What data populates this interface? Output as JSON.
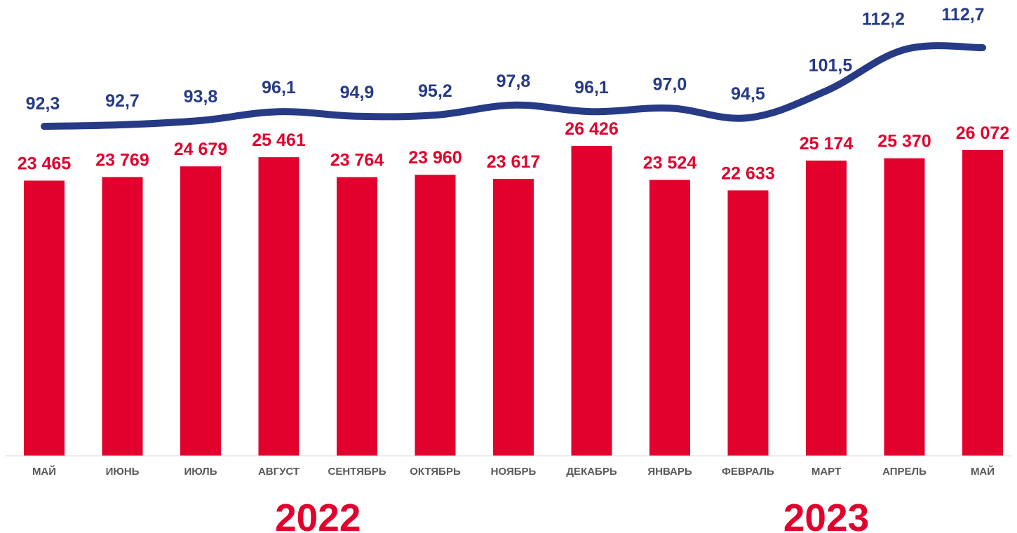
{
  "chart_data": {
    "type": "bar",
    "categories": [
      "МАЙ",
      "ИЮНЬ",
      "ИЮЛЬ",
      "АВГУСТ",
      "СЕНТЯБРЬ",
      "ОКТЯБРЬ",
      "НОЯБРЬ",
      "ДЕКАБРЬ",
      "ЯНВАРЬ",
      "ФЕВРАЛЬ",
      "МАРТ",
      "АПРЕЛЬ",
      "МАЙ"
    ],
    "series": [
      {
        "type": "bar",
        "values": [
          23465,
          23769,
          24679,
          25461,
          23764,
          23960,
          23617,
          26426,
          23524,
          22633,
          25174,
          25370,
          26072
        ],
        "labels": [
          "23 465",
          "23 769",
          "24 679",
          "25 461",
          "23 764",
          "23 960",
          "23 617",
          "26 426",
          "23 524",
          "22 633",
          "25 174",
          "25 370",
          "26 072"
        ],
        "color": "#e2002d"
      },
      {
        "type": "line",
        "values": [
          92.3,
          92.7,
          93.8,
          96.1,
          94.9,
          95.2,
          97.8,
          96.1,
          97.0,
          94.5,
          101.5,
          112.2,
          112.7
        ],
        "labels": [
          "92,3",
          "92,7",
          "93,8",
          "96,1",
          "94,9",
          "95,2",
          "97,8",
          "96,1",
          "97,0",
          "94,5",
          "101,5",
          "112,2",
          "112,7"
        ],
        "color": "#263a86"
      }
    ],
    "groups": [
      {
        "label": "2022",
        "from": 0,
        "to": 7
      },
      {
        "label": "2023",
        "from": 8,
        "to": 12
      }
    ],
    "bar_ylim": [
      0,
      26426
    ],
    "line_ylim": [
      94.5,
      112.7
    ],
    "grid": false,
    "legend": "none",
    "colors": {
      "bar": "#e2002d",
      "line": "#263a86",
      "year": "#e2002d",
      "category_text": "#595959",
      "axis": "#d9d9d9"
    }
  }
}
